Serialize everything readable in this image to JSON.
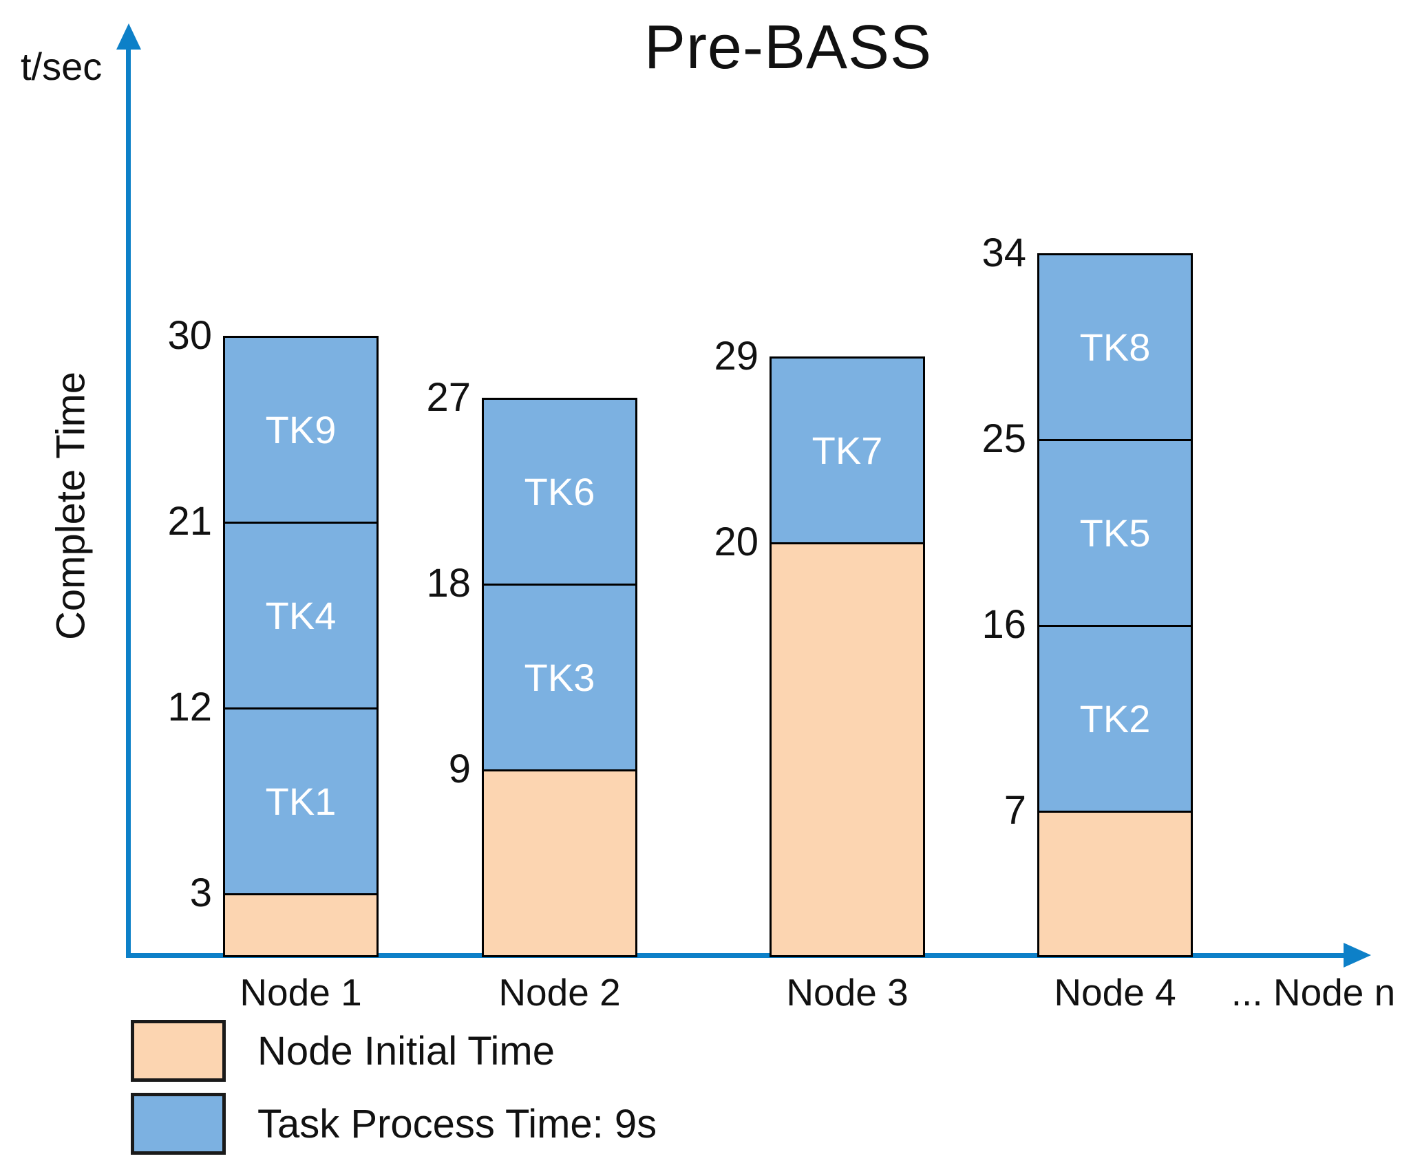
{
  "title": "Pre-BASS",
  "y_axis": {
    "unit_label": "t/sec",
    "axis_title": "Complete Time"
  },
  "x_axis": {
    "overflow_label": "... Node n"
  },
  "legend": {
    "items": [
      {
        "label": "Node Initial Time",
        "color_key": "initial"
      },
      {
        "label": "Task Process Time: 9s",
        "color_key": "task"
      }
    ]
  },
  "colors": {
    "initial": "#FCD5B1",
    "task": "#7CB1E1",
    "axis": "#0D80C8",
    "segment_border": "#000000",
    "segment_text": "#FFFFFF",
    "text": "#111111"
  },
  "chart_data": {
    "type": "bar",
    "stacked": true,
    "title": "Pre-BASS",
    "xlabel": "",
    "ylabel": "Complete Time",
    "y_unit": "t/sec",
    "ylim": [
      0,
      34
    ],
    "grid": false,
    "legend_position": "bottom-left",
    "task_process_time_seconds": 9,
    "categories": [
      "Node 1",
      "Node 2",
      "Node 3",
      "Node 4"
    ],
    "bars": [
      {
        "category": "Node 1",
        "initial_time": 3,
        "tasks": [
          {
            "name": "TK1",
            "start": 3,
            "end": 12
          },
          {
            "name": "TK4",
            "start": 12,
            "end": 21
          },
          {
            "name": "TK9",
            "start": 21,
            "end": 30
          }
        ],
        "boundary_labels": [
          3,
          12,
          21,
          30
        ],
        "complete_time": 30
      },
      {
        "category": "Node 2",
        "initial_time": 9,
        "tasks": [
          {
            "name": "TK3",
            "start": 9,
            "end": 18
          },
          {
            "name": "TK6",
            "start": 18,
            "end": 27
          }
        ],
        "boundary_labels": [
          9,
          18,
          27
        ],
        "complete_time": 27
      },
      {
        "category": "Node 3",
        "initial_time": 20,
        "tasks": [
          {
            "name": "TK7",
            "start": 20,
            "end": 29
          }
        ],
        "boundary_labels": [
          20,
          29
        ],
        "complete_time": 29
      },
      {
        "category": "Node 4",
        "initial_time": 7,
        "tasks": [
          {
            "name": "TK2",
            "start": 7,
            "end": 16
          },
          {
            "name": "TK5",
            "start": 16,
            "end": 25
          },
          {
            "name": "TK8",
            "start": 25,
            "end": 34
          }
        ],
        "boundary_labels": [
          7,
          16,
          25,
          34
        ],
        "complete_time": 34
      }
    ]
  }
}
